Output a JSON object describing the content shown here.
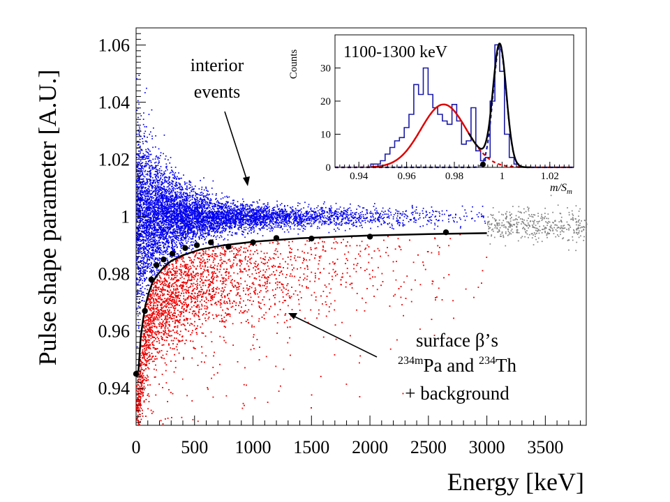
{
  "chart_data": [
    {
      "id": "main",
      "type": "scatter",
      "title": "",
      "xlabel": "Energy [keV]",
      "ylabel": "Pulse shape parameter [A.U.]",
      "xlim": [
        0,
        3850
      ],
      "ylim": [
        0.927,
        1.066
      ],
      "xticks": [
        0,
        500,
        1000,
        1500,
        2000,
        2500,
        3000,
        3500
      ],
      "xtick_labels": [
        "0",
        "500",
        "1000",
        "1500",
        "2000",
        "2500",
        "3000",
        "3500"
      ],
      "yticks": [
        0.94,
        0.96,
        0.98,
        1.0,
        1.02,
        1.04,
        1.06
      ],
      "ytick_labels": [
        "0.94",
        "0.96",
        "0.98",
        "1",
        "1.02",
        "1.04",
        "1.06"
      ],
      "grid": false,
      "series": [
        {
          "name": "interior events",
          "kind": "scatter-cloud",
          "color": "#0000ee",
          "x_range": [
            0,
            3000
          ],
          "center": 1.0
        },
        {
          "name": "surface betas",
          "kind": "scatter-cloud",
          "color": "#ee0000",
          "x_range": [
            0,
            3000
          ],
          "center": 0.97
        },
        {
          "name": "above 3000 keV",
          "kind": "scatter-cloud",
          "color": "#808080",
          "x_range": [
            3000,
            3850
          ],
          "center": 0.997
        },
        {
          "name": "cut points",
          "kind": "points",
          "color": "#000000",
          "x": [
            0,
            75,
            130,
            175,
            235,
            310,
            420,
            520,
            640,
            790,
            1000,
            1200,
            1500,
            2000,
            2650
          ],
          "y": [
            0.945,
            0.967,
            0.978,
            0.983,
            0.985,
            0.987,
            0.989,
            0.99,
            0.991,
            0.9895,
            0.991,
            0.9925,
            0.9923,
            0.993,
            0.9945
          ]
        },
        {
          "name": "cut curve",
          "kind": "line",
          "color": "#000000",
          "x": [
            20,
            40,
            60,
            80,
            110,
            140,
            180,
            230,
            300,
            400,
            550,
            750,
            1000,
            1400,
            2000,
            2500,
            3000
          ],
          "y": [
            0.946,
            0.958,
            0.964,
            0.969,
            0.9735,
            0.977,
            0.9795,
            0.982,
            0.9845,
            0.9865,
            0.9885,
            0.99,
            0.9912,
            0.9924,
            0.9934,
            0.9939,
            0.9942
          ]
        }
      ],
      "annotations": [
        {
          "lines": [
            "interior",
            "events"
          ]
        },
        {
          "lines": [
            "surface β’s",
            "234mPa and 234Th",
            "+ background"
          ]
        }
      ]
    },
    {
      "id": "inset",
      "type": "line",
      "title": "1100-1300 keV",
      "xlabel": "m/Sm",
      "ylabel": "Counts",
      "xlim": [
        0.93,
        1.03
      ],
      "ylim": [
        0,
        40
      ],
      "xticks": [
        0.94,
        0.96,
        0.98,
        1.0,
        1.02
      ],
      "xtick_labels": [
        "0.94",
        "0.96",
        "0.98",
        "1",
        "1.02"
      ],
      "yticks": [
        0,
        10,
        20,
        30
      ],
      "ytick_labels": [
        "0",
        "10",
        "20",
        "30"
      ],
      "grid": false,
      "series": [
        {
          "name": "histogram",
          "kind": "step",
          "color": "#1a1aa8",
          "bin_width": 0.002,
          "x": [
            0.946,
            0.948,
            0.95,
            0.952,
            0.954,
            0.956,
            0.958,
            0.96,
            0.962,
            0.964,
            0.966,
            0.968,
            0.97,
            0.972,
            0.974,
            0.976,
            0.978,
            0.98,
            0.982,
            0.984,
            0.986,
            0.988,
            0.99,
            0.992,
            0.994,
            0.996,
            0.998,
            1.0,
            1.002,
            1.004,
            1.006,
            1.008
          ],
          "values": [
            1,
            1,
            2,
            4,
            6,
            8,
            9,
            12,
            16,
            25,
            22,
            30,
            22,
            18,
            16,
            14,
            13,
            19,
            14,
            7,
            8,
            18,
            5,
            2,
            3,
            20,
            37,
            29,
            10,
            3,
            1,
            0
          ]
        },
        {
          "name": "total fit",
          "kind": "gaussian-sum",
          "color": "#000000",
          "components": [
            {
              "mean": 0.9755,
              "sigma": 0.0095,
              "amp": 19
            },
            {
              "mean": 0.999,
              "sigma": 0.0028,
              "amp": 36.5
            }
          ]
        },
        {
          "name": "surface component",
          "kind": "gaussian",
          "color": "#dd0000",
          "mean": 0.9755,
          "sigma": 0.0095,
          "amp": 19
        },
        {
          "name": "interior component",
          "kind": "gaussian",
          "color": "#1a1aa8",
          "mean": 0.999,
          "sigma": 0.0028,
          "amp": 36.5
        },
        {
          "name": "cut point",
          "kind": "points",
          "color": "#000000",
          "x": [
            0.992
          ],
          "y": [
            0.9
          ]
        }
      ]
    }
  ]
}
